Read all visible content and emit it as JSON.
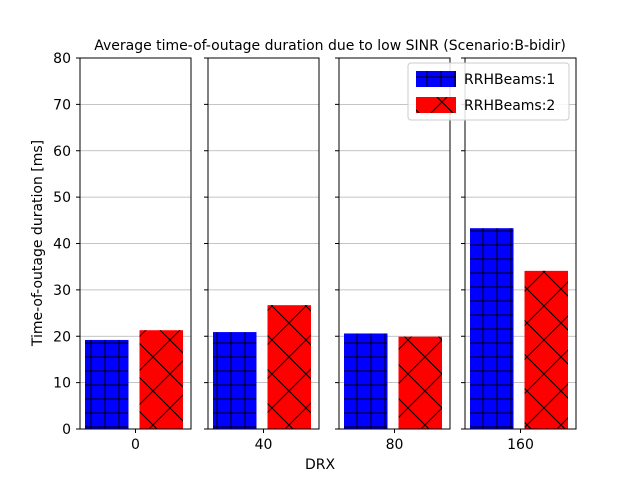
{
  "chart_data": {
    "type": "bar",
    "title": "Average time-of-outage duration due to low SINR (Scenario:B-bidir)",
    "xlabel": "DRX",
    "ylabel": "Time-of-outage duration [ms]",
    "ylim": [
      0,
      80
    ],
    "yticks": [
      0,
      10,
      20,
      30,
      40,
      50,
      60,
      70,
      80
    ],
    "grid": true,
    "legend_position": "top-right",
    "panels": [
      "0",
      "40",
      "80",
      "160"
    ],
    "series": [
      {
        "name": "RRHBeams:1",
        "color": "#0000ff",
        "hatch": "grid",
        "values": [
          19.2,
          20.9,
          20.6,
          43.3
        ]
      },
      {
        "name": "RRHBeams:2",
        "color": "#ff0000",
        "hatch": "cross",
        "values": [
          21.3,
          26.7,
          19.9,
          34.1
        ]
      }
    ]
  }
}
